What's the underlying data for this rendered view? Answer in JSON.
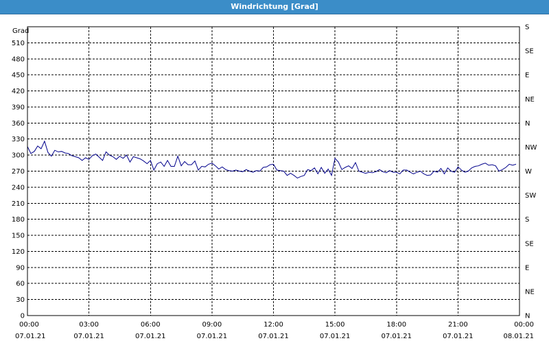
{
  "window": {
    "title": "Windrichtung [Grad]"
  },
  "chart_data": {
    "type": "line",
    "title": "Windrichtung [Grad]",
    "ylabel": "Grad",
    "xlabel": "",
    "ylim": [
      0,
      540
    ],
    "grid": true,
    "y_ticks": [
      0,
      30,
      60,
      90,
      120,
      150,
      180,
      210,
      240,
      270,
      300,
      330,
      360,
      390,
      420,
      450,
      480,
      510
    ],
    "y2_ticks": [
      {
        "value": 0,
        "label": "N"
      },
      {
        "value": 45,
        "label": "NE"
      },
      {
        "value": 90,
        "label": "E"
      },
      {
        "value": 135,
        "label": "SE"
      },
      {
        "value": 180,
        "label": "S"
      },
      {
        "value": 225,
        "label": "SW"
      },
      {
        "value": 270,
        "label": "W"
      },
      {
        "value": 315,
        "label": "NW"
      },
      {
        "value": 360,
        "label": "N"
      },
      {
        "value": 405,
        "label": "NE"
      },
      {
        "value": 450,
        "label": "E"
      },
      {
        "value": 495,
        "label": "SE"
      },
      {
        "value": 540,
        "label": "S"
      }
    ],
    "x_ticks": [
      {
        "time": "00:00",
        "date": "07.01.21"
      },
      {
        "time": "03:00",
        "date": "07.01.21"
      },
      {
        "time": "06:00",
        "date": "07.01.21"
      },
      {
        "time": "09:00",
        "date": "07.01.21"
      },
      {
        "time": "12:00",
        "date": "07.01.21"
      },
      {
        "time": "15:00",
        "date": "07.01.21"
      },
      {
        "time": "18:00",
        "date": "07.01.21"
      },
      {
        "time": "21:00",
        "date": "07.01.21"
      },
      {
        "time": "00:00",
        "date": "08.01.21"
      }
    ],
    "x_start": "07.01.21 00:00",
    "x_end": "08.01.21 00:00",
    "series": [
      {
        "color": "#00008b",
        "x": [
          "00:00",
          "00:10",
          "00:20",
          "00:30",
          "00:40",
          "00:50",
          "01:00",
          "01:10",
          "01:20",
          "01:30",
          "01:40",
          "01:50",
          "02:00",
          "02:10",
          "02:20",
          "02:30",
          "02:40",
          "02:50",
          "03:00",
          "03:10",
          "03:20",
          "03:30",
          "03:40",
          "03:50",
          "04:00",
          "04:10",
          "04:20",
          "04:30",
          "04:40",
          "04:50",
          "05:00",
          "05:10",
          "05:20",
          "05:30",
          "05:40",
          "05:50",
          "06:00",
          "06:10",
          "06:20",
          "06:30",
          "06:40",
          "06:50",
          "07:00",
          "07:10",
          "07:20",
          "07:30",
          "07:40",
          "07:50",
          "08:00",
          "08:10",
          "08:20",
          "08:30",
          "08:40",
          "08:50",
          "09:00",
          "09:10",
          "09:20",
          "09:30",
          "09:40",
          "09:50",
          "10:00",
          "10:10",
          "10:20",
          "10:30",
          "10:40",
          "10:50",
          "11:00",
          "11:10",
          "11:20",
          "11:30",
          "11:40",
          "11:50",
          "12:00",
          "12:10",
          "12:20",
          "12:30",
          "12:40",
          "12:50",
          "13:00",
          "13:10",
          "13:20",
          "13:30",
          "13:40",
          "13:50",
          "14:00",
          "14:10",
          "14:20",
          "14:30",
          "14:40",
          "14:50",
          "15:00",
          "15:10",
          "15:20",
          "15:30",
          "15:40",
          "15:50",
          "16:00",
          "16:10",
          "16:20",
          "16:30",
          "16:40",
          "16:50",
          "17:00",
          "17:10",
          "17:20",
          "17:30",
          "17:40",
          "17:50",
          "18:00",
          "18:10",
          "18:20",
          "18:30",
          "18:40",
          "18:50",
          "19:00",
          "19:10",
          "19:20",
          "19:30",
          "19:40",
          "19:50",
          "20:00",
          "20:10",
          "20:20",
          "20:30",
          "20:40",
          "20:50",
          "21:00",
          "21:10",
          "21:20",
          "21:30",
          "21:40",
          "21:50",
          "22:00",
          "22:10",
          "22:20",
          "22:30",
          "22:40",
          "22:50",
          "23:00",
          "23:10",
          "23:20",
          "23:30",
          "23:40",
          "23:50"
        ],
        "y": [
          316,
          303,
          307,
          317,
          312,
          326,
          305,
          298,
          309,
          306,
          307,
          304,
          303,
          299,
          297,
          295,
          290,
          295,
          292,
          299,
          302,
          296,
          290,
          306,
          300,
          297,
          292,
          298,
          294,
          300,
          287,
          297,
          295,
          293,
          289,
          284,
          290,
          272,
          284,
          287,
          279,
          290,
          279,
          279,
          298,
          280,
          288,
          282,
          282,
          289,
          272,
          279,
          278,
          283,
          285,
          280,
          274,
          278,
          273,
          271,
          270,
          272,
          270,
          269,
          273,
          270,
          268,
          271,
          270,
          277,
          278,
          282,
          283,
          272,
          271,
          270,
          262,
          266,
          262,
          257,
          260,
          262,
          273,
          271,
          276,
          265,
          277,
          266,
          274,
          262,
          294,
          287,
          273,
          277,
          280,
          275,
          286,
          270,
          268,
          266,
          268,
          267,
          269,
          273,
          269,
          267,
          271,
          268,
          268,
          265,
          272,
          272,
          268,
          265,
          268,
          270,
          265,
          262,
          263,
          270,
          268,
          275,
          265,
          276,
          270,
          268,
          278,
          272,
          268,
          270,
          276,
          279,
          280,
          283,
          285,
          281,
          282,
          280,
          270,
          273,
          277,
          283,
          281,
          283
        ]
      }
    ]
  }
}
